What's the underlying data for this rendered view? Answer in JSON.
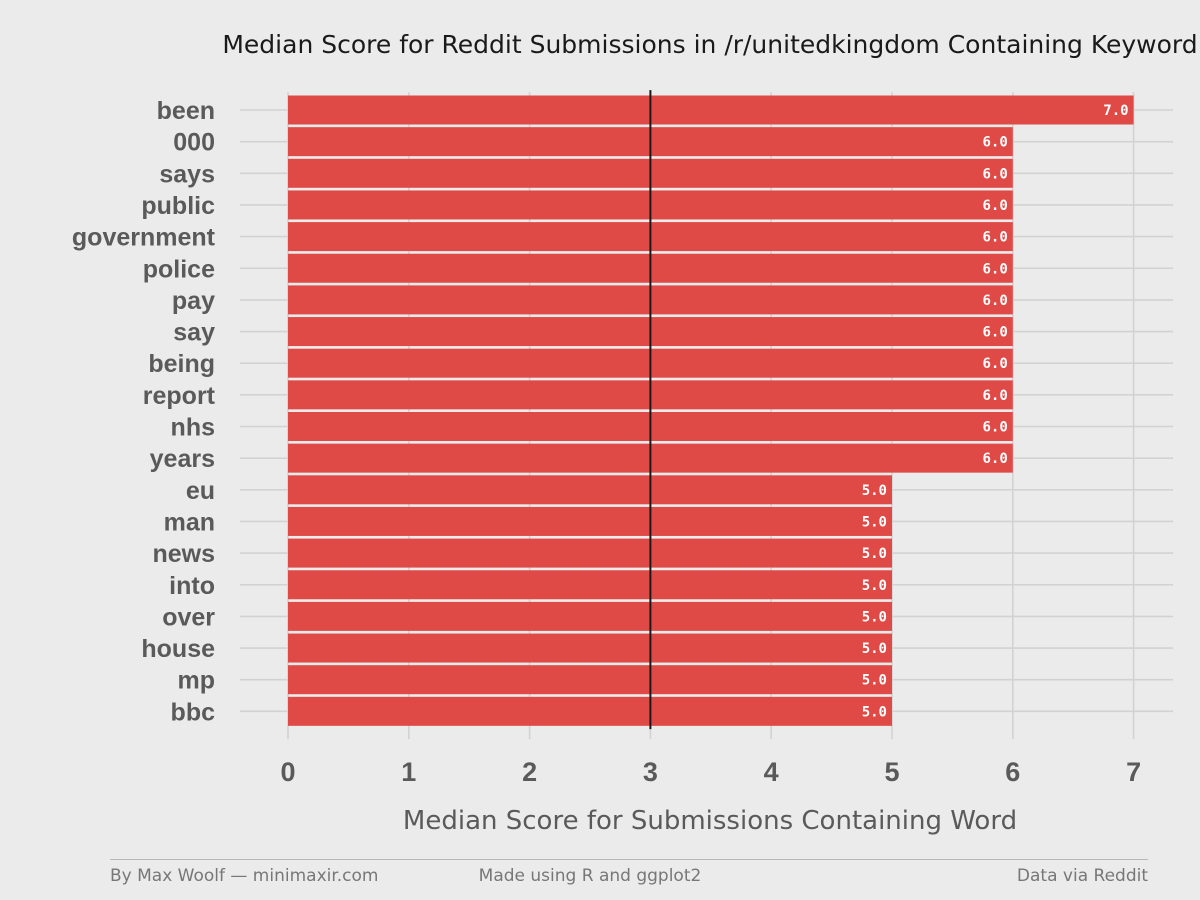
{
  "chart_data": {
    "type": "bar",
    "orientation": "horizontal",
    "title": "Median Score for Reddit Submissions in /r/unitedkingdom Containing Keyword",
    "xlabel": "Median Score for Submissions Containing Word",
    "ylabel": "",
    "categories": [
      "been",
      "000",
      "says",
      "public",
      "government",
      "police",
      "pay",
      "say",
      "being",
      "report",
      "nhs",
      "years",
      "eu",
      "man",
      "news",
      "into",
      "over",
      "house",
      "mp",
      "bbc"
    ],
    "values": [
      7.0,
      6.0,
      6.0,
      6.0,
      6.0,
      6.0,
      6.0,
      6.0,
      6.0,
      6.0,
      6.0,
      6.0,
      5.0,
      5.0,
      5.0,
      5.0,
      5.0,
      5.0,
      5.0,
      5.0
    ],
    "data_labels": [
      "7.0",
      "6.0",
      "6.0",
      "6.0",
      "6.0",
      "6.0",
      "6.0",
      "6.0",
      "6.0",
      "6.0",
      "6.0",
      "6.0",
      "5.0",
      "5.0",
      "5.0",
      "5.0",
      "5.0",
      "5.0",
      "5.0",
      "5.0"
    ],
    "xticks": [
      "0",
      "1",
      "2",
      "3",
      "4",
      "5",
      "6",
      "7"
    ],
    "xlim": [
      0,
      7
    ],
    "reference_line": 3,
    "grid": true,
    "legend": "none",
    "colors": {
      "bar": "#e04a46",
      "background": "#ebebeb",
      "grid": "#d2d2d2",
      "reference_line": "#1a1a1a",
      "text": "#5a5a5a",
      "title": "#1a1a1a"
    }
  },
  "footer": {
    "left": "By Max Woolf — minimaxir.com",
    "center": "Made using R and ggplot2",
    "right": "Data via Reddit"
  }
}
